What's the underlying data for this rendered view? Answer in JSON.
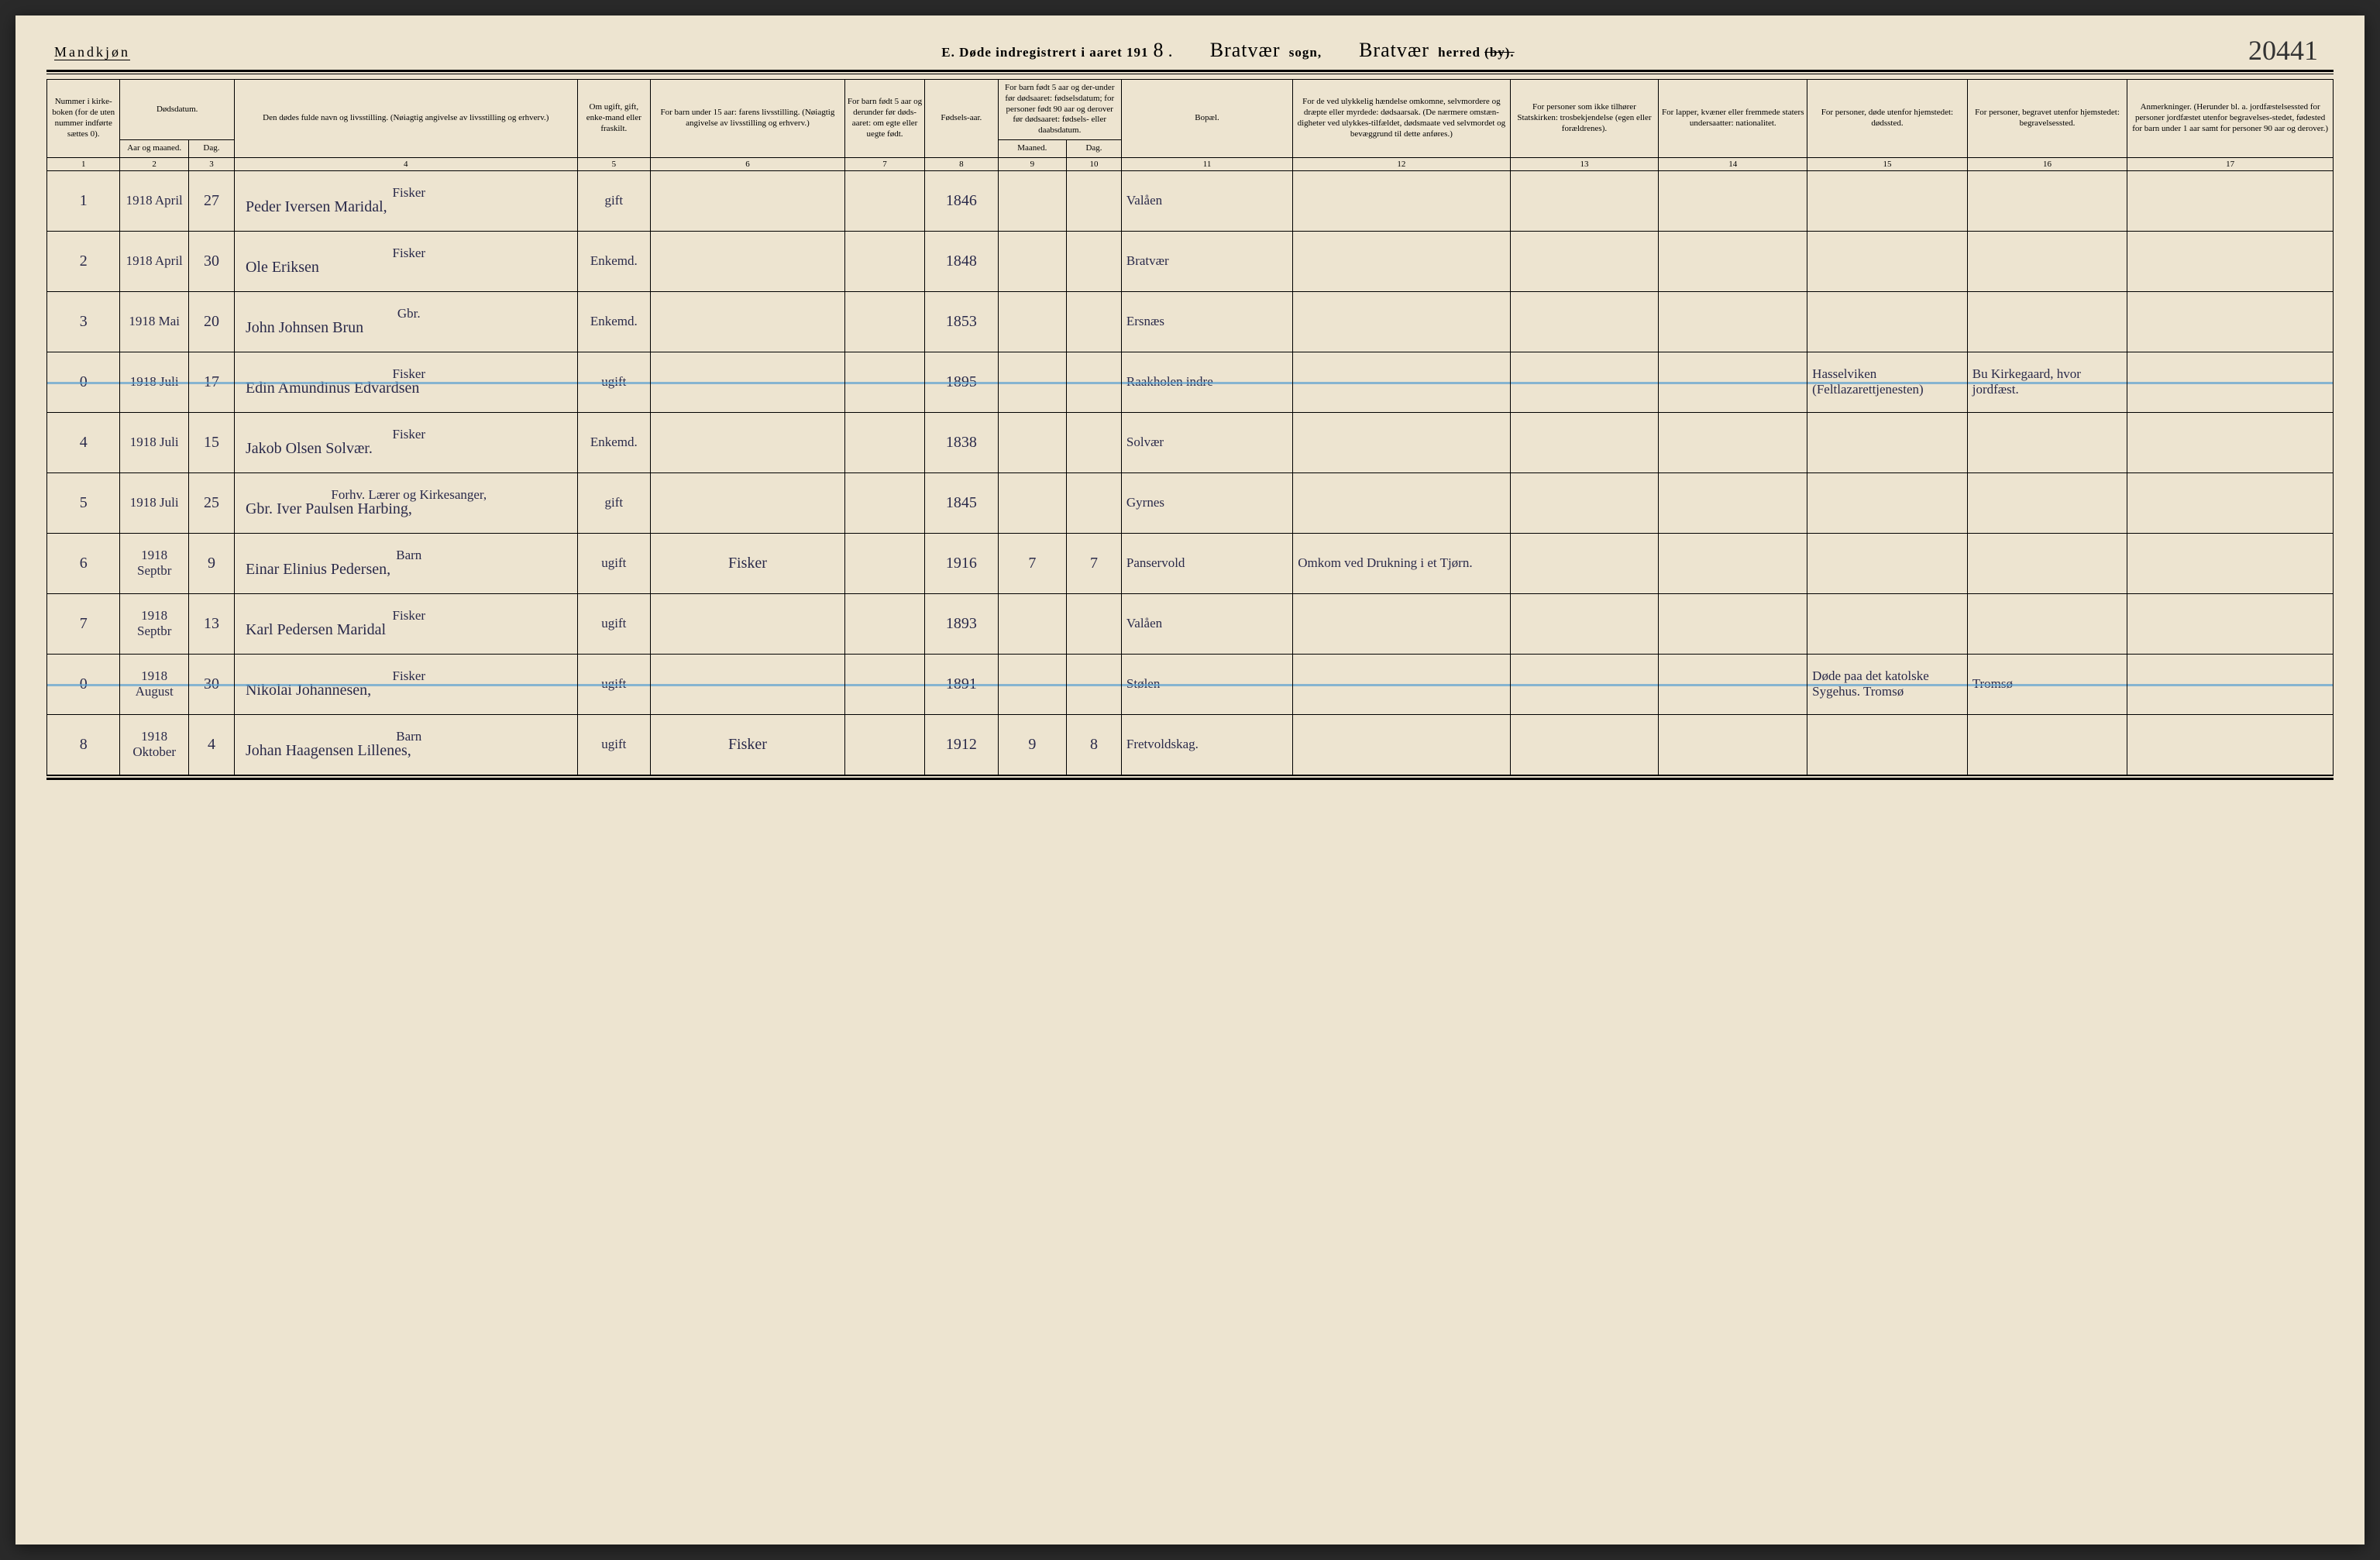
{
  "header": {
    "gender_label": "Mandkjøn",
    "title_prefix": "E.  Døde indregistrert i aaret 191",
    "year_suffix": "8",
    "sogn_name": "Bratvær",
    "sogn_label": "sogn,",
    "herred_name": "Bratvær",
    "herred_label": "herred",
    "by_struck": "(by).",
    "page_number": "20441"
  },
  "columns": {
    "c1": "Nummer i kirke-boken (for de uten nummer indførte sættes 0).",
    "c2_top": "Dødsdatum.",
    "c2_sub1": "Aar og maaned.",
    "c2_sub2": "Dag.",
    "c4": "Den dødes fulde navn og livsstilling.\n(Nøiagtig angivelse av livsstilling og erhverv.)",
    "c5": "Om ugift, gift, enke-mand eller fraskilt.",
    "c6": "For barn under 15 aar: farens livsstilling.\n(Nøiagtig angivelse av livsstilling og erhverv.)",
    "c7": "For barn født 5 aar og derunder før døds-aaret: om egte eller uegte født.",
    "c8": "Fødsels-aar.",
    "c9_top": "For barn født 5 aar og der-under før dødsaaret: fødselsdatum; for personer født 90 aar og derover før dødsaaret: fødsels- eller daabsdatum.",
    "c9_sub1": "Maaned.",
    "c9_sub2": "Dag.",
    "c11": "Bopæl.",
    "c12": "For de ved ulykkelig hændelse omkomne, selvmordere og dræpte eller myrdede: dødsaarsak.\n(De nærmere omstæn-digheter ved ulykkes-tilfældet, dødsmaate ved selvmordet og bevæggrund til dette anføres.)",
    "c13": "For personer som ikke tilhører Statskirken: trosbekjendelse (egen eller forældrenes).",
    "c14": "For lapper, kvæner eller fremmede staters undersaatter: nationalitet.",
    "c15": "For personer, døde utenfor hjemstedet: dødssted.",
    "c16": "For personer, begravet utenfor hjemstedet: begravelsessted.",
    "c17": "Anmerkninger.\n(Herunder bl. a. jordfæstelsessted for personer jordfæstet utenfor begravelses-stedet, fødested for barn under 1 aar samt for personer 90 aar og derover.)"
  },
  "colnums": [
    "1",
    "2",
    "3",
    "4",
    "5",
    "6",
    "7",
    "8",
    "9",
    "10",
    "11",
    "12",
    "13",
    "14",
    "15",
    "16",
    "17"
  ],
  "rows": [
    {
      "num": "1",
      "year": "1918",
      "month": "April",
      "day": "27",
      "occ": "Fisker",
      "name": "Peder Iversen Maridal,",
      "status": "gift",
      "father": "",
      "egte": "",
      "born": "1846",
      "bm": "",
      "bd": "",
      "place": "Valåen",
      "cause": "",
      "faith": "",
      "nat": "",
      "dplace": "",
      "bplace": "",
      "note": "",
      "struck": false
    },
    {
      "num": "2",
      "year": "1918",
      "month": "April",
      "day": "30",
      "occ": "Fisker",
      "name": "Ole Eriksen",
      "status": "Enkemd.",
      "father": "",
      "egte": "",
      "born": "1848",
      "bm": "",
      "bd": "",
      "place": "Bratvær",
      "cause": "",
      "faith": "",
      "nat": "",
      "dplace": "",
      "bplace": "",
      "note": "",
      "struck": false
    },
    {
      "num": "3",
      "year": "1918",
      "month": "Mai",
      "day": "20",
      "occ": "Gbr.",
      "name": "John Johnsen Brun",
      "status": "Enkemd.",
      "father": "",
      "egte": "",
      "born": "1853",
      "bm": "",
      "bd": "",
      "place": "Ersnæs",
      "cause": "",
      "faith": "",
      "nat": "",
      "dplace": "",
      "bplace": "",
      "note": "",
      "struck": false
    },
    {
      "num": "0",
      "year": "1918",
      "month": "Juli",
      "day": "17",
      "occ": "Fisker",
      "name": "Edin Amundinus Edvardsen",
      "status": "ugift",
      "father": "",
      "egte": "",
      "born": "1895",
      "bm": "",
      "bd": "",
      "place": "Raakholen indre",
      "cause": "",
      "faith": "",
      "nat": "",
      "dplace": "Hasselviken (Feltlazarettjenesten)",
      "bplace": "Bu Kirkegaard, hvor jordfæst.",
      "note": "",
      "struck": true
    },
    {
      "num": "4",
      "year": "1918",
      "month": "Juli",
      "day": "15",
      "occ": "Fisker",
      "name": "Jakob Olsen Solvær.",
      "status": "Enkemd.",
      "father": "",
      "egte": "",
      "born": "1838",
      "bm": "",
      "bd": "",
      "place": "Solvær",
      "cause": "",
      "faith": "",
      "nat": "",
      "dplace": "",
      "bplace": "",
      "note": "",
      "struck": false
    },
    {
      "num": "5",
      "year": "1918",
      "month": "Juli",
      "day": "25",
      "occ": "Forhv. Lærer og Kirkesanger,",
      "name": "Gbr. Iver Paulsen Harbing,",
      "status": "gift",
      "father": "",
      "egte": "",
      "born": "1845",
      "bm": "",
      "bd": "",
      "place": "Gyrnes",
      "cause": "",
      "faith": "",
      "nat": "",
      "dplace": "",
      "bplace": "",
      "note": "",
      "struck": false
    },
    {
      "num": "6",
      "year": "1918",
      "month": "Septbr",
      "day": "9",
      "occ": "Barn",
      "name": "Einar Elinius Pedersen,",
      "status": "ugift",
      "father": "Fisker",
      "egte": "",
      "born": "1916",
      "bm": "7",
      "bd": "7",
      "place": "Panservold",
      "cause": "Omkom ved Drukning i et Tjørn.",
      "faith": "",
      "nat": "",
      "dplace": "",
      "bplace": "",
      "note": "",
      "struck": false
    },
    {
      "num": "7",
      "year": "1918",
      "month": "Septbr",
      "day": "13",
      "occ": "Fisker",
      "name": "Karl Pedersen Maridal",
      "status": "ugift",
      "father": "",
      "egte": "",
      "born": "1893",
      "bm": "",
      "bd": "",
      "place": "Valåen",
      "cause": "",
      "faith": "",
      "nat": "",
      "dplace": "",
      "bplace": "",
      "note": "",
      "struck": false
    },
    {
      "num": "0",
      "year": "1918",
      "month": "August",
      "day": "30",
      "occ": "Fisker",
      "name": "Nikolai Johannesen,",
      "status": "ugift",
      "father": "",
      "egte": "",
      "born": "1891",
      "bm": "",
      "bd": "",
      "place": "Stølen",
      "cause": "",
      "faith": "",
      "nat": "",
      "dplace": "Døde paa det katolske Sygehus. Tromsø",
      "bplace": "Tromsø",
      "note": "",
      "struck": true
    },
    {
      "num": "8",
      "year": "1918",
      "month": "Oktober",
      "day": "4",
      "occ": "Barn",
      "name": "Johan Haagensen Lillenes,",
      "status": "ugift",
      "father": "Fisker",
      "egte": "",
      "born": "1912",
      "bm": "9",
      "bd": "8",
      "place": "Fretvoldskag.",
      "cause": "",
      "faith": "",
      "nat": "",
      "dplace": "",
      "bplace": "",
      "note": "",
      "struck": false
    }
  ],
  "colors": {
    "paper": "#ede4d0",
    "ink": "#000000",
    "script": "#2a2a4a",
    "strike": "#5aa0d0"
  }
}
